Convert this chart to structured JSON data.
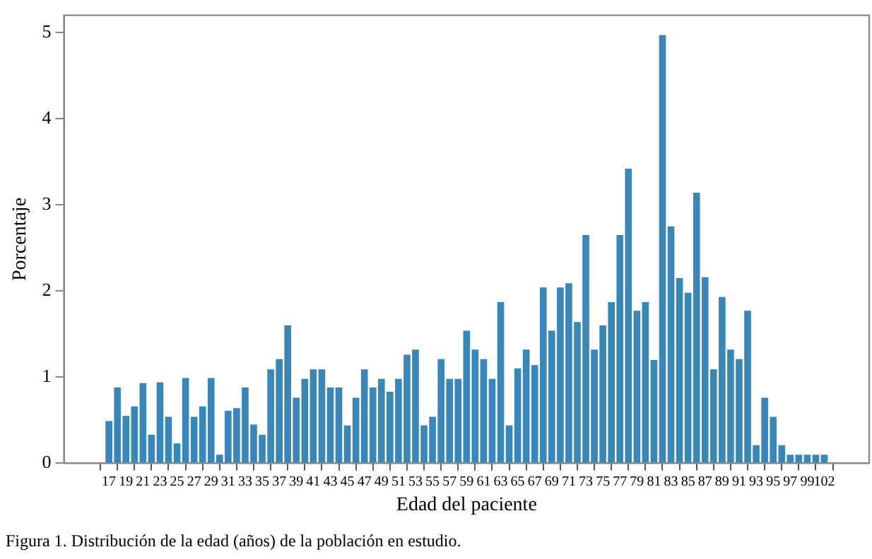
{
  "chart_data": {
    "type": "bar",
    "xlabel": "Edad del paciente",
    "ylabel": "Porcentaje",
    "annotations": [
      "Figura 1. Distribución de la edad (años) de la población en estudio."
    ],
    "categories": [
      "17",
      null,
      "19",
      null,
      "21",
      null,
      "23",
      null,
      "25",
      null,
      "27",
      null,
      "29",
      null,
      "31",
      null,
      "33",
      null,
      "35",
      null,
      "37",
      null,
      "39",
      null,
      "41",
      null,
      "43",
      null,
      "45",
      null,
      "47",
      null,
      "49",
      null,
      "51",
      null,
      "53",
      null,
      "55",
      null,
      "57",
      null,
      "59",
      null,
      "61",
      null,
      "63",
      null,
      "65",
      null,
      "67",
      null,
      "69",
      null,
      "71",
      null,
      "73",
      null,
      "75",
      null,
      "77",
      null,
      "79",
      null,
      "81",
      null,
      "83",
      null,
      "85",
      null,
      "87",
      null,
      "89",
      null,
      "91",
      null,
      "93",
      null,
      "95",
      null,
      "97",
      null,
      "99",
      null,
      "102"
    ],
    "values": [
      0.49,
      0.88,
      0.55,
      0.66,
      0.93,
      0.33,
      0.94,
      0.54,
      0.23,
      0.99,
      0.54,
      0.66,
      0.99,
      0.1,
      0.61,
      0.64,
      0.88,
      0.45,
      0.33,
      1.09,
      1.21,
      1.6,
      0.76,
      0.98,
      1.09,
      1.09,
      0.88,
      0.88,
      0.44,
      0.76,
      1.09,
      0.88,
      0.98,
      0.83,
      0.98,
      1.26,
      1.32,
      0.44,
      0.54,
      1.21,
      0.98,
      0.98,
      1.54,
      1.32,
      1.21,
      0.98,
      1.87,
      0.44,
      1.1,
      1.32,
      1.14,
      2.04,
      1.54,
      2.04,
      2.09,
      1.64,
      2.65,
      1.32,
      1.6,
      1.87,
      2.65,
      3.42,
      1.77,
      1.87,
      1.2,
      4.97,
      2.75,
      2.15,
      1.98,
      3.14,
      2.16,
      1.09,
      1.93,
      1.32,
      1.21,
      1.77,
      0.21,
      0.76,
      0.54,
      0.21,
      0.1,
      0.1,
      0.1,
      0.1,
      0.1
    ],
    "color": "#3a87b7",
    "ylim": [
      0,
      5.2
    ],
    "yticks": [
      0,
      1,
      2,
      3,
      4,
      5
    ],
    "grid": false,
    "legend": false
  }
}
